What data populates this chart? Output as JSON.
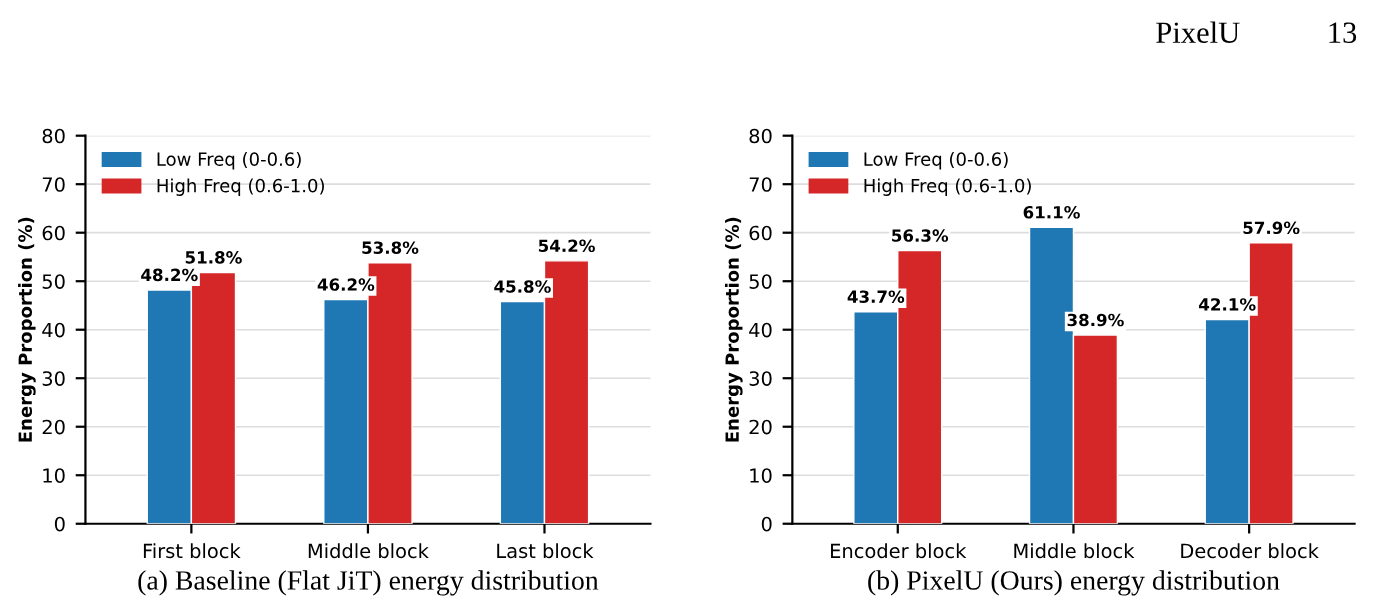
{
  "chart_data": [
    {
      "type": "bar",
      "categories": [
        "First block",
        "Middle block",
        "Last block"
      ],
      "ylabel": "Energy Proportion (%)",
      "ylim": [
        0,
        80
      ],
      "yticks": [
        0,
        10,
        20,
        30,
        40,
        50,
        60,
        70,
        80
      ],
      "grid": "y",
      "legend": "top left",
      "data_labels": true,
      "series": [
        {
          "name": "Low Freq (0-0.6)",
          "color": "#1f77b4",
          "values": [
            48.2,
            46.2,
            45.8
          ],
          "value_labels": [
            "48.2%",
            "46.2%",
            "45.8%"
          ]
        },
        {
          "name": "High Freq (0.6-1.0)",
          "color": "#d62728",
          "values": [
            51.8,
            53.8,
            54.2
          ],
          "value_labels": [
            "51.8%",
            "53.8%",
            "54.2%"
          ]
        }
      ],
      "annotations": [
        "(a) Baseline (Flat JiT) energy distribution"
      ]
    },
    {
      "type": "bar",
      "categories": [
        "Encoder block",
        "Middle block",
        "Decoder block"
      ],
      "ylabel": "Energy Proportion (%)",
      "ylim": [
        0,
        80
      ],
      "yticks": [
        0,
        10,
        20,
        30,
        40,
        50,
        60,
        70,
        80
      ],
      "grid": "y",
      "legend": "top left",
      "data_labels": true,
      "series": [
        {
          "name": "Low Freq (0-0.6)",
          "color": "#1f77b4",
          "values": [
            43.7,
            61.1,
            42.1
          ],
          "value_labels": [
            "43.7%",
            "61.1%",
            "42.1%"
          ]
        },
        {
          "name": "High Freq (0.6-1.0)",
          "color": "#d62728",
          "values": [
            56.3,
            38.9,
            57.9
          ],
          "value_labels": [
            "56.3%",
            "38.9%",
            "57.9%"
          ]
        }
      ],
      "annotations": [
        "PixelU",
        "13",
        "(b) PixelU (Ours) energy distribution"
      ]
    }
  ]
}
